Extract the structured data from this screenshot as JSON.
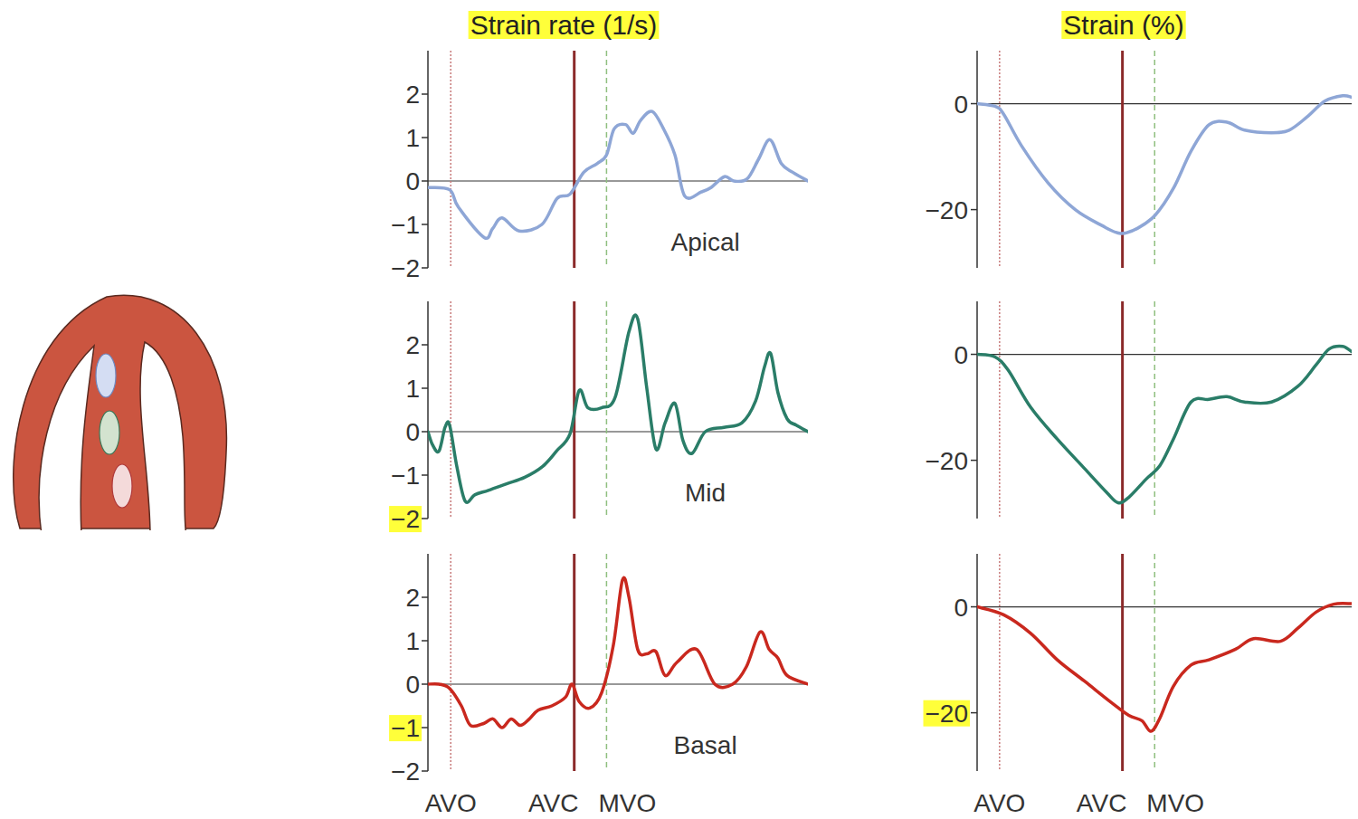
{
  "chart_data": [
    {
      "type": "line",
      "title": "Strain rate (1/s)",
      "annotation": "Apical",
      "tick_labels": "y",
      "xlim": [
        0,
        100
      ],
      "xticks": [
        {
          "value": 6,
          "label": "AVO"
        },
        {
          "value": 38.5,
          "label": "AVC"
        },
        {
          "value": 47,
          "label": "MVO"
        }
      ],
      "ylim": [
        -2,
        3
      ],
      "yticks": [
        {
          "value": -2,
          "label": "−2"
        },
        {
          "value": -1,
          "label": "−1"
        },
        0,
        1,
        2
      ],
      "x": [
        0,
        5.7,
        8,
        14.8,
        17,
        19.5,
        24,
        30,
        34,
        37.4,
        41,
        44.5,
        47,
        49,
        52,
        54,
        56,
        59,
        62,
        65,
        67.6,
        72,
        74.5,
        78,
        80.5,
        84,
        87,
        90,
        93,
        96,
        100
      ],
      "series": [
        {
          "color": "#8ea6d6",
          "values": [
            -0.15,
            -0.2,
            -0.6,
            -1.3,
            -1.1,
            -0.85,
            -1.15,
            -1.0,
            -0.4,
            -0.3,
            0.2,
            0.4,
            0.6,
            1.2,
            1.3,
            1.1,
            1.4,
            1.6,
            1.2,
            0.6,
            -0.35,
            -0.25,
            -0.15,
            0.1,
            0.0,
            0.05,
            0.5,
            0.95,
            0.4,
            0.2,
            0.0
          ]
        }
      ]
    },
    {
      "type": "line",
      "annotation": "Mid",
      "tick_labels": "y",
      "xlim": [
        0,
        100
      ],
      "xticks": [
        {
          "value": 6,
          "label": "AVO"
        },
        {
          "value": 38.5,
          "label": "AVC"
        },
        {
          "value": 47,
          "label": "MVO"
        }
      ],
      "ylim": [
        -2,
        3
      ],
      "yticks": [
        {
          "value": -2,
          "label": "−2"
        },
        {
          "value": -1,
          "label": "−1"
        },
        0,
        1,
        2
      ],
      "x": [
        0,
        1.2,
        2.9,
        4.5,
        5.7,
        7.6,
        9.8,
        12.4,
        15.9,
        20.7,
        25.5,
        30.2,
        33.8,
        37.4,
        39.8,
        42.1,
        45.7,
        49.3,
        52.9,
        55.2,
        57.6,
        60,
        62.4,
        65,
        67.1,
        69.5,
        73,
        77.9,
        82.6,
        86.2,
        88.6,
        90.2,
        92.1,
        94.5,
        96.9,
        100
      ],
      "series": [
        {
          "color": "#2a7d68",
          "values": [
            0,
            -0.3,
            -0.45,
            0.1,
            0.15,
            -0.8,
            -1.6,
            -1.45,
            -1.35,
            -1.2,
            -1.05,
            -0.8,
            -0.45,
            -0.05,
            0.95,
            0.55,
            0.55,
            0.8,
            2.3,
            2.6,
            1.0,
            -0.4,
            0.2,
            0.65,
            -0.2,
            -0.5,
            0.0,
            0.1,
            0.2,
            0.7,
            1.5,
            1.8,
            0.9,
            0.3,
            0.15,
            0
          ]
        }
      ]
    },
    {
      "type": "line",
      "annotation": "Basal",
      "tick_labels": true,
      "xlim": [
        0,
        100
      ],
      "xticks": [
        {
          "value": 6,
          "label": "AVO"
        },
        {
          "value": 38.5,
          "label": "AVC"
        },
        {
          "value": 47,
          "label": "MVO"
        }
      ],
      "ylim": [
        -2,
        3
      ],
      "yticks": [
        {
          "value": -2,
          "label": "−2"
        },
        {
          "value": -1,
          "label": "−1"
        },
        0,
        1,
        2
      ],
      "x": [
        0,
        2.9,
        5.7,
        8.8,
        11.2,
        14.8,
        17.1,
        19.5,
        21.9,
        24.3,
        26.7,
        29.0,
        32.6,
        36.2,
        37.9,
        39.8,
        42.6,
        45.7,
        48.8,
        51.2,
        52.9,
        55.2,
        57.6,
        60,
        62.4,
        65.5,
        70.7,
        75.5,
        80.2,
        83.8,
        87.4,
        89.8,
        92.1,
        94.5,
        100
      ],
      "series": [
        {
          "color": "#c9281e",
          "values": [
            0,
            0,
            -0.1,
            -0.5,
            -0.95,
            -0.9,
            -0.8,
            -1.0,
            -0.8,
            -0.95,
            -0.8,
            -0.6,
            -0.5,
            -0.3,
            0.0,
            -0.4,
            -0.55,
            -0.2,
            0.9,
            2.4,
            2.0,
            0.8,
            0.7,
            0.75,
            0.2,
            0.5,
            0.8,
            0.0,
            0.0,
            0.4,
            1.2,
            0.8,
            0.6,
            0.2,
            0.0
          ]
        }
      ]
    },
    {
      "type": "line",
      "title": "Strain (%)",
      "tick_labels": "y",
      "xlim": [
        0,
        100
      ],
      "xticks": [
        {
          "value": 6,
          "label": "AVO"
        },
        {
          "value": 38.8,
          "label": "AVC"
        },
        {
          "value": 47.4,
          "label": "MVO"
        }
      ],
      "ylim": [
        -31,
        10
      ],
      "yticks": [
        {
          "value": -20,
          "label": "−20"
        },
        0
      ],
      "x": [
        0,
        4.8,
        7.1,
        11.9,
        19,
        26.2,
        33.3,
        38.3,
        42.9,
        47.6,
        52.4,
        57.1,
        61.9,
        66.7,
        71.4,
        78.6,
        83.3,
        88.1,
        92.9,
        97.6,
        100
      ],
      "series": [
        {
          "color": "#8ea6d6",
          "values": [
            0,
            -0.5,
            -2,
            -8,
            -15,
            -20,
            -23,
            -24.5,
            -23.5,
            -21,
            -16,
            -9,
            -4,
            -3.5,
            -5,
            -5.5,
            -5,
            -2.5,
            0.5,
            1.5,
            1.2
          ]
        }
      ]
    },
    {
      "type": "line",
      "tick_labels": "y",
      "xlim": [
        0,
        100
      ],
      "xticks": [
        {
          "value": 6,
          "label": "AVO"
        },
        {
          "value": 38.8,
          "label": "AVC"
        },
        {
          "value": 47.4,
          "label": "MVO"
        }
      ],
      "ylim": [
        -31,
        10
      ],
      "yticks": [
        {
          "value": -20,
          "label": "−20"
        },
        0
      ],
      "x": [
        0,
        4.8,
        8.3,
        14.3,
        21.4,
        28.6,
        34.5,
        37.6,
        40.5,
        45.2,
        48.8,
        52.4,
        57.1,
        61.9,
        66.7,
        71.4,
        78.6,
        85.7,
        90.5,
        94,
        97.6,
        100
      ],
      "series": [
        {
          "color": "#2a7d68",
          "values": [
            0,
            -0.5,
            -3,
            -10,
            -16,
            -21.5,
            -26,
            -28,
            -27,
            -23.5,
            -21,
            -16,
            -9,
            -8.5,
            -8,
            -9,
            -9,
            -6,
            -2,
            1,
            1.5,
            0.5
          ]
        }
      ]
    },
    {
      "type": "line",
      "tick_labels": true,
      "xlim": [
        0,
        100
      ],
      "xticks": [
        {
          "value": 6,
          "label": "AVO"
        },
        {
          "value": 38.8,
          "label": "AVC"
        },
        {
          "value": 47.4,
          "label": "MVO"
        }
      ],
      "ylim": [
        -31,
        10
      ],
      "yticks": [
        {
          "value": -20,
          "label": "−20"
        },
        0
      ],
      "x": [
        0,
        7.1,
        14.3,
        21.4,
        28.6,
        35.7,
        40.5,
        44,
        46.4,
        48.8,
        52.4,
        57.1,
        61.9,
        69,
        73.8,
        81,
        85.7,
        90.5,
        95.2,
        100
      ],
      "series": [
        {
          "color": "#c9281e",
          "values": [
            0,
            -1.5,
            -5,
            -10,
            -14,
            -18,
            -20.5,
            -21.5,
            -23.5,
            -21,
            -15,
            -11,
            -10,
            -8,
            -6,
            -6.5,
            -4,
            -1,
            0.5,
            0.6
          ]
        }
      ]
    }
  ]
}
